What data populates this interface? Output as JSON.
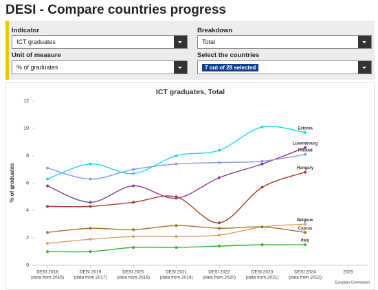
{
  "header": {
    "title": "DESI - Compare countries progress"
  },
  "filters": [
    {
      "label": "Indicator",
      "value": "ICT graduates"
    },
    {
      "label": "Breakdown",
      "value": "Total"
    },
    {
      "label": "Unit of measure",
      "value": "% of graduates"
    },
    {
      "label": "Select the countries",
      "value": "7 out of 28 selected"
    }
  ],
  "chart_data": {
    "type": "line",
    "title": "ICT graduates, Total",
    "y_label": "% of graduates",
    "credit": "European Commission",
    "categories": [
      "DESI 2018",
      "DESI 2019",
      "DESI 2020",
      "DESI 2021",
      "DESI 2022",
      "DESI 2023",
      "DESI 2024",
      "2025"
    ],
    "category_notes": [
      "(data from 2016)",
      "(data from 2017)",
      "(data from 2018)",
      "(data from 2019)",
      "(data from 2020)",
      "(data from 2021)",
      "(data from 2022)",
      null
    ],
    "ylim": [
      0,
      12
    ],
    "yticks": [
      0,
      2,
      4,
      6,
      8,
      10,
      12
    ],
    "grid": false,
    "series": [
      {
        "name": "Estonia",
        "color": "#19d9e6",
        "values": [
          6.3,
          7.4,
          6.7,
          8.0,
          8.4,
          10.1,
          9.7,
          null
        ]
      },
      {
        "name": "Luxembourg",
        "color": "#8e3a86",
        "values": [
          5.8,
          4.6,
          5.8,
          4.9,
          6.4,
          7.4,
          8.6,
          null
        ]
      },
      {
        "name": "Finland",
        "color": "#8a9be8",
        "values": [
          7.1,
          6.3,
          7.0,
          7.4,
          7.5,
          7.6,
          8.1,
          null
        ]
      },
      {
        "name": "Hungary",
        "color": "#a3402b",
        "values": [
          4.3,
          4.3,
          4.6,
          5.0,
          3.1,
          5.7,
          6.8,
          null
        ]
      },
      {
        "name": "Belgium",
        "color": "#d9a066",
        "values": [
          1.6,
          1.9,
          2.1,
          2.1,
          2.2,
          2.8,
          3.0,
          null
        ]
      },
      {
        "name": "Cyprus",
        "color": "#a87226",
        "values": [
          2.4,
          2.7,
          2.6,
          2.9,
          2.7,
          2.8,
          2.4,
          null
        ]
      },
      {
        "name": "Italy",
        "color": "#2fb52f",
        "values": [
          1.0,
          1.0,
          1.3,
          1.3,
          1.4,
          1.5,
          1.5,
          null
        ]
      }
    ]
  }
}
